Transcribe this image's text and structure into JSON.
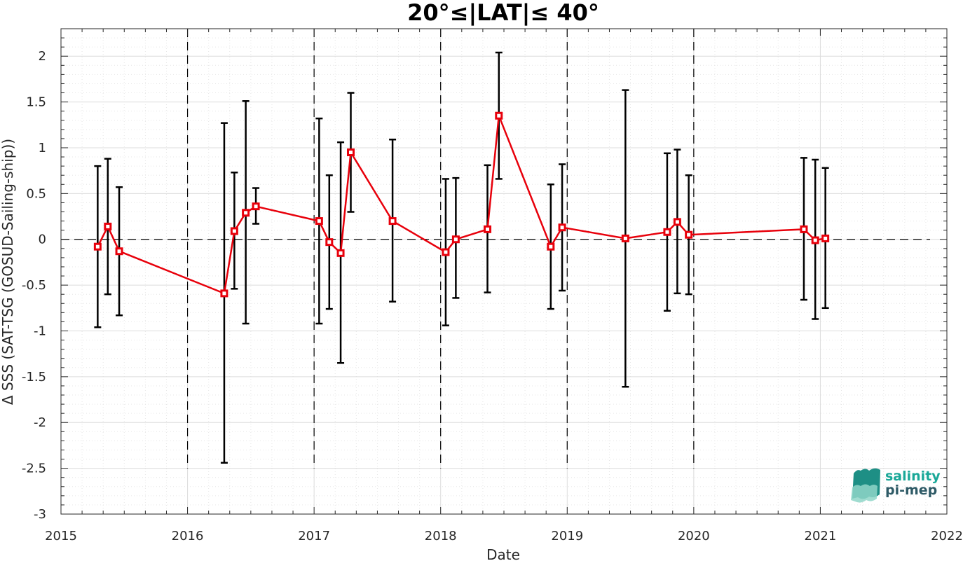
{
  "chart_data": {
    "type": "line",
    "title": "20°≤|LAT|≤ 40°",
    "xlabel": "Date",
    "ylabel": "Δ SSS (SAT-TSG (GOSUD-Sailing-ship))",
    "xlim": [
      2015,
      2022
    ],
    "ylim": [
      -3,
      2.3
    ],
    "x_ticks": [
      "2015",
      "2016",
      "2017",
      "2018",
      "2019",
      "2020",
      "2021",
      "2022"
    ],
    "y_ticks": [
      "2",
      "1.5",
      "1",
      "0.5",
      "0",
      "-0.5",
      "-1",
      "-1.5",
      "-2",
      "-2.5",
      "-3"
    ],
    "grid": true,
    "vertical_reference_years": [
      2016,
      2017,
      2018,
      2019,
      2020
    ],
    "zero_line": 0,
    "colors": {
      "line": "#e8000b",
      "errorbar": "#000000",
      "axis": "#262626",
      "grid": "#e6e6e6"
    },
    "series": [
      {
        "points": [
          {
            "x": 2015.29,
            "y": -0.08,
            "lo": -0.96,
            "hi": 0.8
          },
          {
            "x": 2015.37,
            "y": 0.14,
            "lo": -0.6,
            "hi": 0.88
          },
          {
            "x": 2015.46,
            "y": -0.13,
            "lo": -0.83,
            "hi": 0.57
          },
          {
            "x": 2016.29,
            "y": -0.59,
            "lo": -2.44,
            "hi": 1.27
          },
          {
            "x": 2016.37,
            "y": 0.09,
            "lo": -0.54,
            "hi": 0.73
          },
          {
            "x": 2016.46,
            "y": 0.29,
            "lo": -0.92,
            "hi": 1.51
          },
          {
            "x": 2016.54,
            "y": 0.36,
            "lo": 0.17,
            "hi": 0.56
          },
          {
            "x": 2017.04,
            "y": 0.2,
            "lo": -0.92,
            "hi": 1.32
          },
          {
            "x": 2017.12,
            "y": -0.03,
            "lo": -0.76,
            "hi": 0.7
          },
          {
            "x": 2017.21,
            "y": -0.15,
            "lo": -1.35,
            "hi": 1.06
          },
          {
            "x": 2017.29,
            "y": 0.95,
            "lo": 0.3,
            "hi": 1.6
          },
          {
            "x": 2017.62,
            "y": 0.2,
            "lo": -0.68,
            "hi": 1.09
          },
          {
            "x": 2018.04,
            "y": -0.14,
            "lo": -0.94,
            "hi": 0.66
          },
          {
            "x": 2018.12,
            "y": 0.0,
            "lo": -0.64,
            "hi": 0.67
          },
          {
            "x": 2018.37,
            "y": 0.11,
            "lo": -0.58,
            "hi": 0.81
          },
          {
            "x": 2018.46,
            "y": 1.35,
            "lo": 0.66,
            "hi": 2.04
          },
          {
            "x": 2018.87,
            "y": -0.08,
            "lo": -0.76,
            "hi": 0.6
          },
          {
            "x": 2018.96,
            "y": 0.13,
            "lo": -0.56,
            "hi": 0.82
          },
          {
            "x": 2019.46,
            "y": 0.01,
            "lo": -1.61,
            "hi": 1.63
          },
          {
            "x": 2019.79,
            "y": 0.08,
            "lo": -0.78,
            "hi": 0.94
          },
          {
            "x": 2019.87,
            "y": 0.19,
            "lo": -0.59,
            "hi": 0.98
          },
          {
            "x": 2019.96,
            "y": 0.05,
            "lo": -0.6,
            "hi": 0.7
          },
          {
            "x": 2020.87,
            "y": 0.11,
            "lo": -0.66,
            "hi": 0.89
          },
          {
            "x": 2020.96,
            "y": -0.01,
            "lo": -0.87,
            "hi": 0.87
          },
          {
            "x": 2021.04,
            "y": 0.01,
            "lo": -0.75,
            "hi": 0.78
          }
        ]
      }
    ]
  },
  "logo": {
    "line1": "salinity",
    "line2": "pi-mep",
    "colors": {
      "text1": "#1aa898",
      "text2": "#2e5a66",
      "wave_dark": "#1e8f85",
      "wave_light": "#8fd6c8"
    }
  }
}
